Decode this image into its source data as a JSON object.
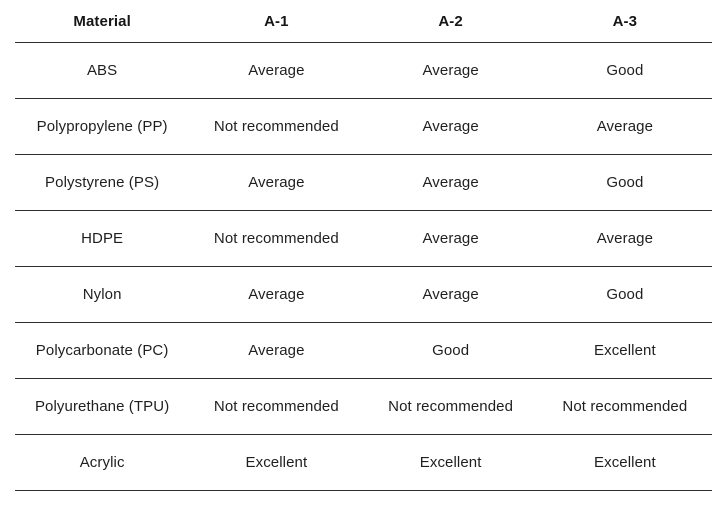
{
  "chart_data": {
    "type": "table",
    "title": "",
    "columns": [
      "Material",
      "A-1",
      "A-2",
      "A-3"
    ],
    "rows": [
      [
        "ABS",
        "Average",
        "Average",
        "Good"
      ],
      [
        "Polypropylene (PP)",
        "Not recommended",
        "Average",
        "Average"
      ],
      [
        "Polystyrene (PS)",
        "Average",
        "Average",
        "Good"
      ],
      [
        "HDPE",
        "Not recommended",
        "Average",
        "Average"
      ],
      [
        "Nylon",
        "Average",
        "Average",
        "Good"
      ],
      [
        "Polycarbonate (PC)",
        "Average",
        "Good",
        "Excellent"
      ],
      [
        "Polyurethane (TPU)",
        "Not recommended",
        "Not recommended",
        "Not recommended"
      ],
      [
        "Acrylic",
        "Excellent",
        "Excellent",
        "Excellent"
      ]
    ],
    "layout": {
      "grid": "horizontal-rules-only",
      "header_style": "bold",
      "cell_alignment": "center"
    }
  },
  "colors": {
    "background": "#ffffff",
    "text": "#1f1f1f",
    "header_text": "#161616",
    "rule": "#2e2e2e"
  }
}
